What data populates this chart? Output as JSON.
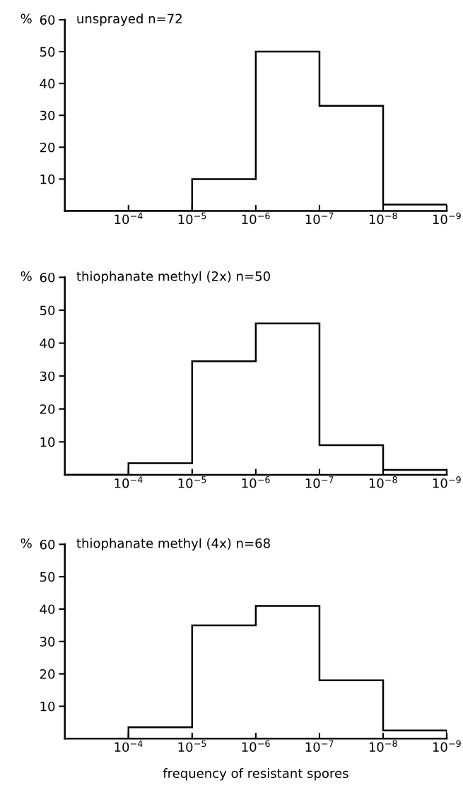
{
  "chart_data": [
    {
      "type": "histogram",
      "title": "unsprayed n=72",
      "ylabel": "%",
      "bins": [
        0.001,
        0.0001,
        1e-05,
        1e-06,
        1e-07,
        1e-08,
        1e-09
      ],
      "values": [
        0,
        0,
        10,
        50,
        33,
        2
      ],
      "color": "#000000",
      "log": "x",
      "xlim": [
        0.001,
        1e-09
      ],
      "ylim": [
        0,
        60
      ],
      "yticks": [
        10,
        20,
        30,
        40,
        50,
        60
      ],
      "xticks": [
        {
          "value": 0.0001,
          "label": "10$^{−4}$"
        },
        {
          "value": 1e-05,
          "label": "10$^{−5}$"
        },
        {
          "value": 1e-06,
          "label": "10$^{−6}$"
        },
        {
          "value": 1e-07,
          "label": "10$^{−7}$"
        },
        {
          "value": 1e-08,
          "label": "10$^{−8}$"
        },
        {
          "value": 1e-09,
          "label": "10$^{−9}$"
        }
      ],
      "grid": false
    },
    {
      "type": "histogram",
      "title": "thiophanate methyl (2x) n=50",
      "ylabel": "%",
      "bins": [
        0.001,
        0.0001,
        1e-05,
        1e-06,
        1e-07,
        1e-08,
        1e-09
      ],
      "values": [
        0,
        3.5,
        34.5,
        46,
        9,
        1.5
      ],
      "color": "#000000",
      "log": "x",
      "xlim": [
        0.001,
        1e-09
      ],
      "ylim": [
        0,
        60
      ],
      "yticks": [
        10,
        20,
        30,
        40,
        50,
        60
      ],
      "xticks": [
        {
          "value": 0.0001,
          "label": "10$^{−4}$"
        },
        {
          "value": 1e-05,
          "label": "10$^{−5}$"
        },
        {
          "value": 1e-06,
          "label": "10$^{−6}$"
        },
        {
          "value": 1e-07,
          "label": "10$^{−7}$"
        },
        {
          "value": 1e-08,
          "label": "10$^{−8}$"
        },
        {
          "value": 1e-09,
          "label": "10$^{−9}$"
        }
      ],
      "grid": false
    },
    {
      "type": "histogram",
      "title": "thiophanate methyl (4x) n=68",
      "ylabel": "%",
      "xlabel": "frequency of resistant spores",
      "bins": [
        0.001,
        0.0001,
        1e-05,
        1e-06,
        1e-07,
        1e-08,
        1e-09
      ],
      "values": [
        0,
        3.5,
        35,
        41,
        18,
        2.5
      ],
      "color": "#000000",
      "log": "x",
      "xlim": [
        0.001,
        1e-09
      ],
      "ylim": [
        0,
        60
      ],
      "yticks": [
        10,
        20,
        30,
        40,
        50,
        60
      ],
      "xticks": [
        {
          "value": 0.0001,
          "label": "10$^{−4}$"
        },
        {
          "value": 1e-05,
          "label": "10$^{−5}$"
        },
        {
          "value": 1e-06,
          "label": "10$^{−6}$"
        },
        {
          "value": 1e-07,
          "label": "10$^{−7}$"
        },
        {
          "value": 1e-08,
          "label": "10$^{−8}$"
        },
        {
          "value": 1e-09,
          "label": "10$^{−9}$"
        }
      ],
      "grid": false
    }
  ]
}
